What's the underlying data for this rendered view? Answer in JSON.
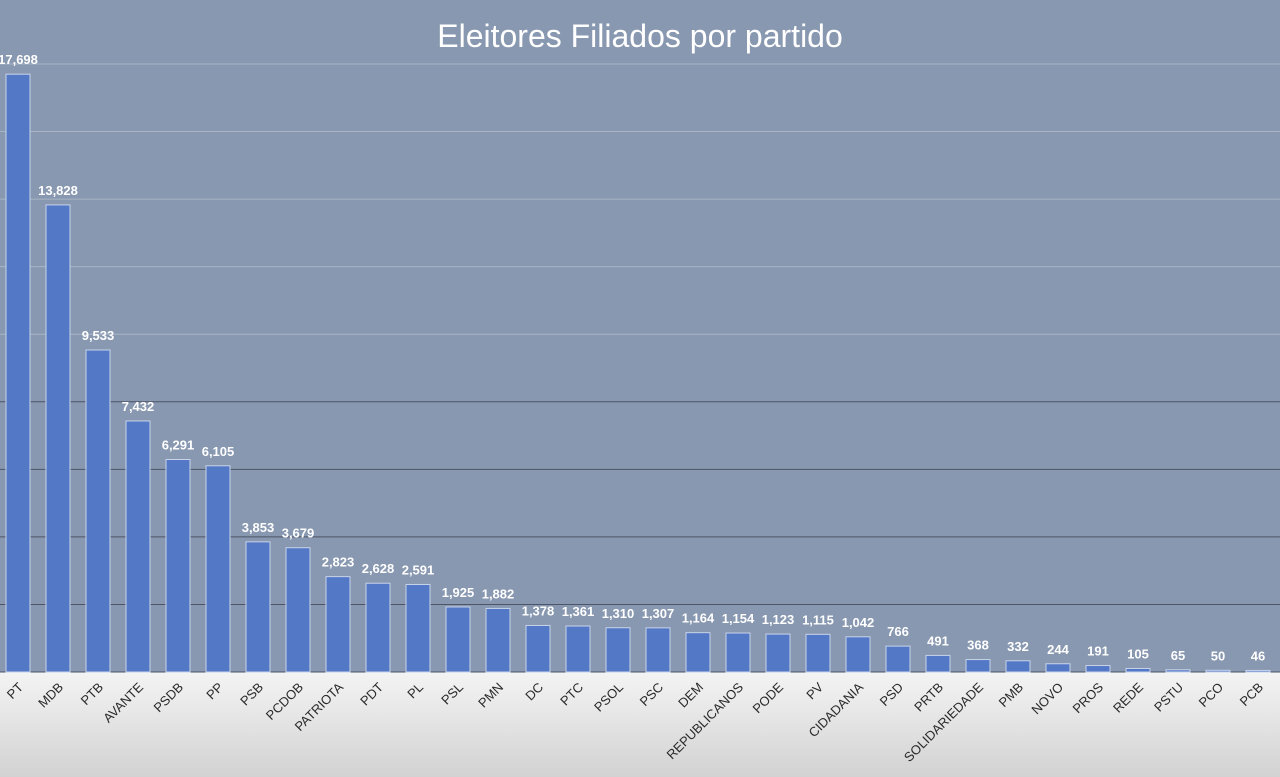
{
  "chart_data": {
    "type": "bar",
    "title": "Eleitores Filiados por partido",
    "xlabel": "",
    "ylabel": "",
    "ylim": [
      0,
      18000
    ],
    "grid": true,
    "legend": "none",
    "categories": [
      "PT",
      "MDB",
      "PTB",
      "AVANTE",
      "PSDB",
      "PP",
      "PSB",
      "PCDOB",
      "PATRIOTA",
      "PDT",
      "PL",
      "PSL",
      "PMN",
      "DC",
      "PTC",
      "PSOL",
      "PSC",
      "DEM",
      "REPUBLICANOS",
      "PODE",
      "PV",
      "CIDADANIA",
      "PSD",
      "PRTB",
      "SOLIDARIEDADE",
      "PMB",
      "NOVO",
      "PROS",
      "REDE",
      "PSTU",
      "PCO",
      "PCB"
    ],
    "values": [
      17698,
      13828,
      9533,
      7432,
      6291,
      6105,
      3853,
      3679,
      2823,
      2628,
      2591,
      1925,
      1882,
      1378,
      1361,
      1310,
      1307,
      1164,
      1154,
      1123,
      1115,
      1042,
      766,
      491,
      368,
      332,
      244,
      191,
      105,
      65,
      50,
      46
    ],
    "value_labels": [
      "17,698",
      "13,828",
      "9,533",
      "7,432",
      "6,291",
      "6,105",
      "3,853",
      "3,679",
      "2,823",
      "2,628",
      "2,591",
      "1,925",
      "1,882",
      "1,378",
      "1,361",
      "1,310",
      "1,307",
      "1,164",
      "1,154",
      "1,123",
      "1,115",
      "1,042",
      "766",
      "491",
      "368",
      "332",
      "244",
      "191",
      "105",
      "65",
      "50",
      "46"
    ]
  },
  "colors": {
    "background": "#8898b0",
    "bar_fill": "#5378c6",
    "bar_stroke": "#c9d4ea",
    "gridline": "#a8b4c6",
    "gridline_lower": "#4d5566",
    "axis_band_top": "#f4f4f4",
    "axis_band_bottom": "#d2d2d2",
    "label_text": "#ffffff",
    "tick_text": "#2a2a2a"
  }
}
